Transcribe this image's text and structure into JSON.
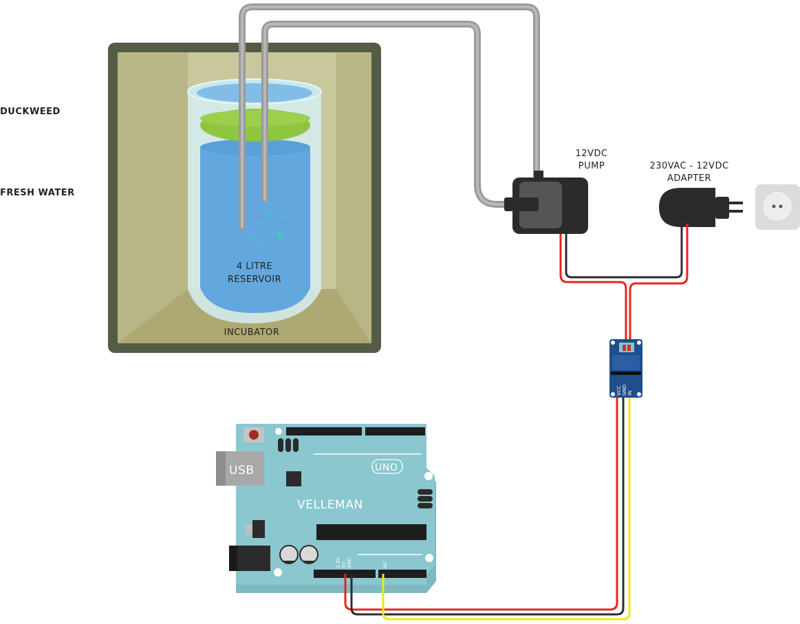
{
  "labels": {
    "duckweed": "DUCKWEED",
    "fresh_water": "FRESH WATER",
    "reservoir_line1": "4 LITRE",
    "reservoir_line2": "RESERVOIR",
    "incubator": "INCUBATOR",
    "pump_line1": "12VDC",
    "pump_line2": "PUMP",
    "adapter_line1": "230VAC - 12VDC",
    "adapter_line2": "ADAPTER"
  },
  "relay": {
    "pins": [
      "VCC",
      "GND",
      "IN"
    ]
  },
  "arduino": {
    "brand": "VELLEMAN",
    "model": "UNO",
    "usb": "USB",
    "pins": [
      "3.3V",
      "5V",
      "GND",
      "A0"
    ]
  },
  "colors": {
    "incubator_frame": "#545c45",
    "incubator_inner": "#bfbd8e",
    "water": "#62a8df",
    "duckweed": "#8ec63f",
    "tube": "#9a9a9a",
    "pump": "#2b2b2b",
    "relay": "#1f4e8c",
    "board": "#8ac7cf",
    "wire_red": "#e52421",
    "wire_black": "#2b2b2b",
    "wire_yellow": "#f0e51c"
  }
}
